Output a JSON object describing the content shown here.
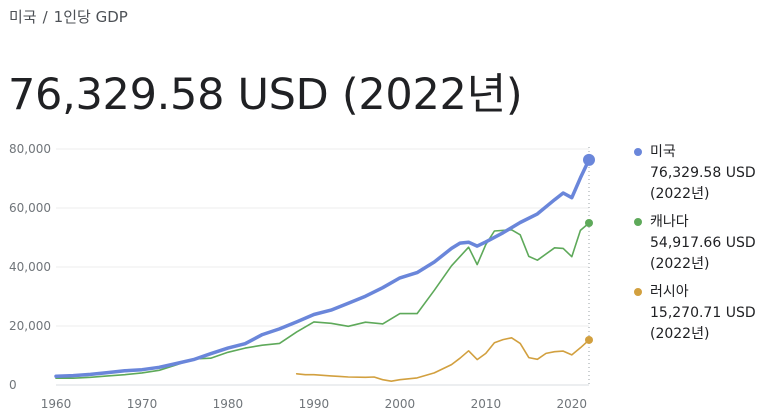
{
  "breadcrumb": {
    "country": "미국",
    "separator": "/",
    "metric": "1인당 GDP"
  },
  "headline": "76,329.58 USD (2022년)",
  "legend": [
    {
      "name": "미국",
      "value": "76,329.58 USD",
      "year": "(2022년)",
      "color": "#6a86da"
    },
    {
      "name": "캐나다",
      "value": "54,917.66 USD",
      "year": "(2022년)",
      "color": "#5ea95a"
    },
    {
      "name": "러시아",
      "value": "15,270.71 USD",
      "year": "(2022년)",
      "color": "#d2a03f"
    }
  ],
  "chart_data": {
    "type": "line",
    "xlim": [
      1960,
      2022
    ],
    "ylim": [
      0,
      80000
    ],
    "yticks": [
      0,
      20000,
      40000,
      60000,
      80000
    ],
    "ytick_labels": [
      "0",
      "20,000",
      "40,000",
      "60,000",
      "80,000"
    ],
    "xticks": [
      1960,
      1970,
      1980,
      1990,
      2000,
      2010,
      2020
    ],
    "xtick_labels": [
      "1960",
      "1970",
      "1980",
      "1990",
      "2000",
      "2010",
      "2020"
    ],
    "grid": true,
    "legend_position": "right",
    "series": [
      {
        "name": "미국",
        "color": "#6a86da",
        "x": [
          1960,
          1962,
          1964,
          1966,
          1968,
          1970,
          1972,
          1974,
          1976,
          1978,
          1980,
          1982,
          1984,
          1986,
          1988,
          1990,
          1992,
          1994,
          1996,
          1998,
          2000,
          2002,
          2004,
          2006,
          2007,
          2008,
          2009,
          2010,
          2012,
          2014,
          2016,
          2018,
          2019,
          2020,
          2021,
          2022
        ],
        "y": [
          3000,
          3200,
          3600,
          4200,
          4800,
          5200,
          6000,
          7300,
          8600,
          10600,
          12500,
          14000,
          17100,
          19000,
          21400,
          23900,
          25400,
          27700,
          30100,
          33000,
          36300,
          38100,
          41700,
          46300,
          48100,
          48400,
          47100,
          48500,
          51600,
          55100,
          58000,
          62800,
          65100,
          63500,
          70200,
          76330
        ]
      },
      {
        "name": "캐나다",
        "color": "#5ea95a",
        "x": [
          1960,
          1962,
          1964,
          1966,
          1968,
          1970,
          1972,
          1974,
          1976,
          1978,
          1980,
          1982,
          1984,
          1986,
          1988,
          1990,
          1992,
          1994,
          1996,
          1998,
          2000,
          2002,
          2004,
          2006,
          2008,
          2009,
          2010,
          2011,
          2013,
          2014,
          2015,
          2016,
          2018,
          2019,
          2020,
          2021,
          2022
        ],
        "y": [
          2300,
          2300,
          2600,
          3100,
          3500,
          4100,
          5000,
          6800,
          8800,
          9100,
          11100,
          12500,
          13500,
          14100,
          18000,
          21400,
          20900,
          19900,
          21300,
          20700,
          24200,
          24200,
          32100,
          40400,
          46700,
          40800,
          47600,
          52200,
          52600,
          50900,
          43600,
          42300,
          46500,
          46300,
          43500,
          52400,
          54918
        ]
      },
      {
        "name": "러시아",
        "color": "#d2a03f",
        "x": [
          1988,
          1989,
          1990,
          1992,
          1993,
          1994,
          1996,
          1997,
          1998,
          1999,
          2000,
          2002,
          2004,
          2006,
          2007,
          2008,
          2009,
          2010,
          2011,
          2012,
          2013,
          2014,
          2015,
          2016,
          2017,
          2018,
          2019,
          2020,
          2021,
          2022
        ],
        "y": [
          3800,
          3500,
          3500,
          3100,
          2900,
          2700,
          2600,
          2700,
          1800,
          1300,
          1800,
          2400,
          4100,
          6900,
          9100,
          11600,
          8600,
          10700,
          14300,
          15400,
          16000,
          14100,
          9300,
          8700,
          10700,
          11300,
          11500,
          10200,
          12600,
          15271
        ]
      }
    ]
  }
}
